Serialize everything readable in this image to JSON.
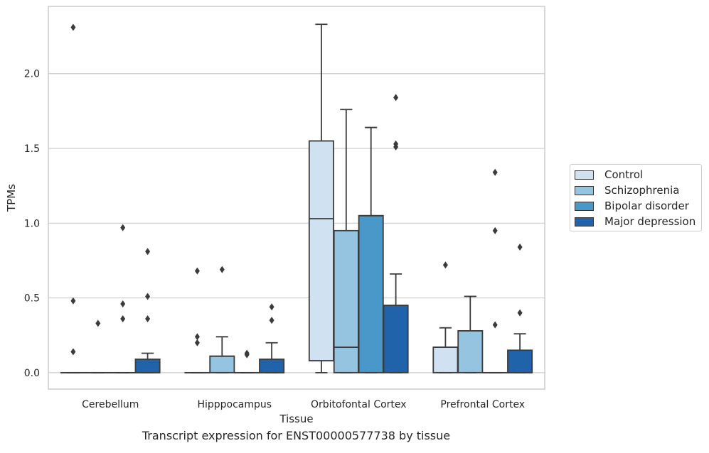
{
  "chart_data": {
    "type": "box",
    "caption": "Transcript expression for ENST00000577738 by tissue",
    "xlabel": "Tissue",
    "ylabel": "TPMs",
    "ylim": [
      -0.11,
      2.45
    ],
    "yticks": [
      0.0,
      0.5,
      1.0,
      1.5,
      2.0
    ],
    "ytick_labels": [
      "0.0",
      "0.5",
      "1.0",
      "1.5",
      "2.0"
    ],
    "grid": "y",
    "legend_position": "right",
    "categories": [
      "Cerebellum",
      "Hipppocampus",
      "Orbitofontal Cortex",
      "Prefrontal Cortex"
    ],
    "series": [
      {
        "name": "Control",
        "color": "#d0e1f2",
        "boxes": [
          {
            "q1": 0,
            "median": 0,
            "q3": 0,
            "whislo": 0,
            "whishi": 0,
            "fliers": [
              0.14,
              0.48,
              2.31
            ]
          },
          {
            "q1": 0,
            "median": 0,
            "q3": 0,
            "whislo": 0,
            "whishi": 0,
            "fliers": [
              0.2,
              0.24,
              0.68
            ]
          },
          {
            "q1": 0.08,
            "median": 1.03,
            "q3": 1.55,
            "whislo": 0,
            "whishi": 2.33,
            "fliers": []
          },
          {
            "q1": 0,
            "median": 0.17,
            "q3": 0.17,
            "whislo": 0,
            "whishi": 0.3,
            "fliers": [
              0.72
            ]
          }
        ]
      },
      {
        "name": "Schizophrenia",
        "color": "#94c4df",
        "boxes": [
          {
            "q1": 0,
            "median": 0,
            "q3": 0,
            "whislo": 0,
            "whishi": 0,
            "fliers": [
              0.33
            ]
          },
          {
            "q1": 0,
            "median": 0.11,
            "q3": 0.11,
            "whislo": 0,
            "whishi": 0.24,
            "fliers": [
              0.69
            ]
          },
          {
            "q1": 0,
            "median": 0.17,
            "q3": 0.95,
            "whislo": 0,
            "whishi": 1.76,
            "fliers": []
          },
          {
            "q1": 0,
            "median": 0.28,
            "q3": 0.28,
            "whislo": 0,
            "whishi": 0.51,
            "fliers": []
          }
        ]
      },
      {
        "name": "Bipolar disorder",
        "color": "#4a98c9",
        "boxes": [
          {
            "q1": 0,
            "median": 0,
            "q3": 0,
            "whislo": 0,
            "whishi": 0,
            "fliers": [
              0.36,
              0.46,
              0.97
            ]
          },
          {
            "q1": 0,
            "median": 0,
            "q3": 0,
            "whislo": 0,
            "whishi": 0,
            "fliers": [
              0.12,
              0.13
            ]
          },
          {
            "q1": 0,
            "median": 1.05,
            "q3": 1.05,
            "whislo": 0,
            "whishi": 1.64,
            "fliers": []
          },
          {
            "q1": 0,
            "median": 0,
            "q3": 0,
            "whislo": 0,
            "whishi": 0,
            "fliers": [
              0.32,
              0.95,
              1.34
            ]
          }
        ]
      },
      {
        "name": "Major depression",
        "color": "#2163aa",
        "boxes": [
          {
            "q1": 0,
            "median": 0,
            "q3": 0.09,
            "whislo": 0,
            "whishi": 0.13,
            "fliers": [
              0.36,
              0.51,
              0.81
            ]
          },
          {
            "q1": 0,
            "median": 0,
            "q3": 0.09,
            "whislo": 0,
            "whishi": 0.2,
            "fliers": [
              0.35,
              0.44
            ]
          },
          {
            "q1": 0,
            "median": 0.45,
            "q3": 0.45,
            "whislo": 0,
            "whishi": 0.66,
            "fliers": [
              1.51,
              1.53,
              1.84
            ]
          },
          {
            "q1": 0,
            "median": 0,
            "q3": 0.15,
            "whislo": 0,
            "whishi": 0.26,
            "fliers": [
              0.4,
              0.84
            ]
          }
        ]
      }
    ]
  }
}
